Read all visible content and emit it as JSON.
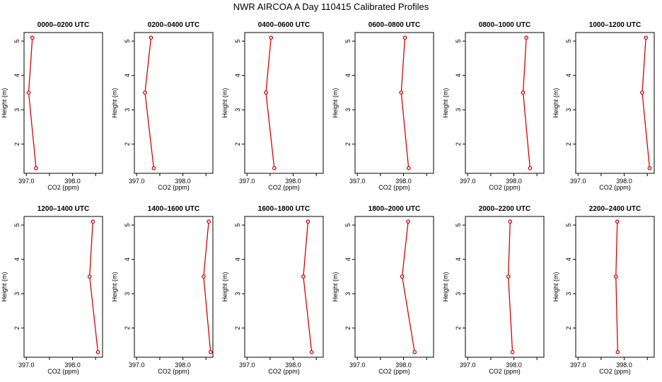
{
  "title": "NWR AIRCOA A  Day 110415  Calibrated Profiles",
  "colors": {
    "line": "#dd0000",
    "axis": "#000000"
  },
  "chart_data": {
    "type": "line",
    "xlabel": "CO2 (ppm)",
    "ylabel": "Height (m)",
    "xlim": [
      396.95,
      398.65
    ],
    "ylim": [
      1.15,
      5.25
    ],
    "xticks": [
      397.0,
      398.0
    ],
    "xtick_labels": [
      "397.0",
      "398.0"
    ],
    "yticks": [
      2,
      3,
      4,
      5
    ],
    "ytick_labels": [
      "2",
      "3",
      "4",
      "5"
    ],
    "heights": [
      5.1,
      3.5,
      1.3
    ],
    "panels": [
      {
        "title": "0000–0200 UTC",
        "co2": [
          397.13,
          397.05,
          397.21
        ]
      },
      {
        "title": "0200–0400 UTC",
        "co2": [
          397.31,
          397.18,
          397.37
        ]
      },
      {
        "title": "0400–0600 UTC",
        "co2": [
          397.52,
          397.41,
          397.59
        ]
      },
      {
        "title": "0600–0800 UTC",
        "co2": [
          398.03,
          397.95,
          398.11
        ]
      },
      {
        "title": "0800–1000 UTC",
        "co2": [
          398.27,
          398.2,
          398.35
        ]
      },
      {
        "title": "1000–1200 UTC",
        "co2": [
          398.47,
          398.39,
          398.55
        ]
      },
      {
        "title": "1200–1400 UTC",
        "co2": [
          398.44,
          398.37,
          398.55
        ]
      },
      {
        "title": "1400–1600 UTC",
        "co2": [
          398.56,
          398.45,
          398.6
        ]
      },
      {
        "title": "1600–1800 UTC",
        "co2": [
          398.32,
          398.22,
          398.4
        ]
      },
      {
        "title": "1800–2000 UTC",
        "co2": [
          398.1,
          397.97,
          398.24
        ]
      },
      {
        "title": "2000–2200 UTC",
        "co2": [
          397.92,
          397.88,
          397.97
        ]
      },
      {
        "title": "2200–2400 UTC",
        "co2": [
          397.85,
          397.82,
          397.86
        ]
      }
    ]
  }
}
